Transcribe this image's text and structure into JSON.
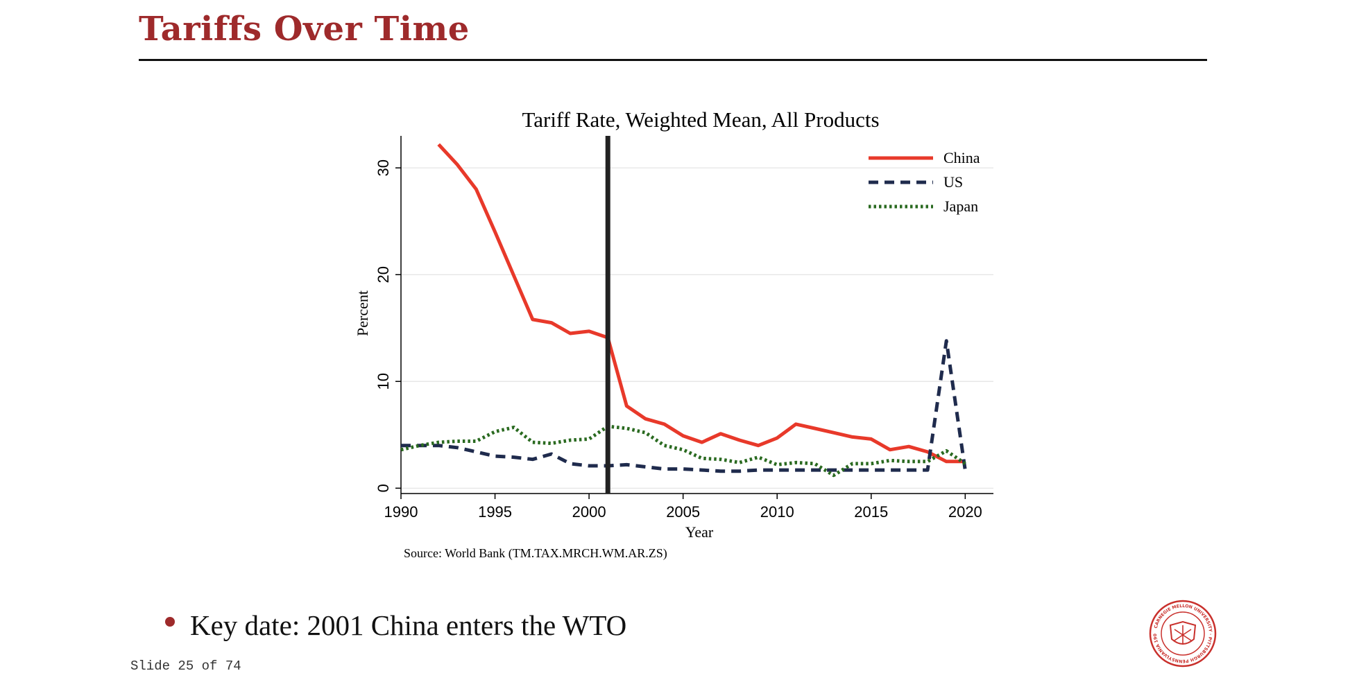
{
  "slide": {
    "title": "Tariffs Over Time",
    "bullet": "Key date: 2001 China enters the WTO",
    "slide_number": "Slide 25 of 74"
  },
  "logo": {
    "name": "Carnegie Mellon University seal",
    "text": "CARNEGIE MELLON UNIVERSITY · PITTSBURGH PENNSYLVANIA 1900"
  },
  "colors": {
    "accent": "#9e2a2b",
    "china": "#e8392a",
    "us": "#1f2b4d",
    "japan": "#2a6a20",
    "event_line": "#222222"
  },
  "chart_data": {
    "type": "line",
    "title": "Tariff Rate, Weighted Mean, All Products",
    "xlabel": "Year",
    "ylabel": "Percent",
    "source": "Source: World Bank (TM.TAX.MRCH.WM.AR.ZS)",
    "xlim": [
      1990,
      2021.5
    ],
    "ylim": [
      -0.5,
      33
    ],
    "xticks": [
      1990,
      1995,
      2000,
      2005,
      2010,
      2015,
      2020
    ],
    "yticks": [
      0,
      10,
      20,
      30
    ],
    "grid": true,
    "legend_position": "top-right",
    "vertical_line": {
      "x": 2001
    },
    "series": [
      {
        "name": "China",
        "style": "solid",
        "x": [
          1992,
          1993,
          1994,
          1995,
          1996,
          1997,
          1998,
          1999,
          2000,
          2001,
          2002,
          2003,
          2004,
          2005,
          2006,
          2007,
          2008,
          2009,
          2010,
          2011,
          2012,
          2013,
          2014,
          2015,
          2016,
          2017,
          2018,
          2019,
          2020
        ],
        "values": [
          32.2,
          30.3,
          28.0,
          24.0,
          19.9,
          15.8,
          15.5,
          14.5,
          14.7,
          14.1,
          7.7,
          6.5,
          6.0,
          4.9,
          4.3,
          5.1,
          4.5,
          4.0,
          4.7,
          6.0,
          5.6,
          5.2,
          4.8,
          4.6,
          3.6,
          3.9,
          3.4,
          2.5,
          2.5
        ]
      },
      {
        "name": "US",
        "style": "dashed",
        "x": [
          1990,
          1991,
          1992,
          1993,
          1994,
          1995,
          1996,
          1997,
          1998,
          1999,
          2000,
          2001,
          2002,
          2003,
          2004,
          2005,
          2006,
          2007,
          2008,
          2009,
          2010,
          2011,
          2012,
          2013,
          2014,
          2015,
          2016,
          2017,
          2018,
          2019,
          2020
        ],
        "values": [
          4.0,
          4.0,
          4.0,
          3.8,
          3.4,
          3.0,
          2.9,
          2.7,
          3.2,
          2.3,
          2.1,
          2.1,
          2.2,
          2.0,
          1.8,
          1.8,
          1.7,
          1.6,
          1.6,
          1.7,
          1.7,
          1.7,
          1.7,
          1.7,
          1.7,
          1.7,
          1.7,
          1.7,
          1.7,
          13.8,
          1.7
        ]
      },
      {
        "name": "Japan",
        "style": "dotted",
        "x": [
          1990,
          1991,
          1992,
          1993,
          1994,
          1995,
          1996,
          1997,
          1998,
          1999,
          2000,
          2001,
          2002,
          2003,
          2004,
          2005,
          2006,
          2007,
          2008,
          2009,
          2010,
          2011,
          2012,
          2013,
          2014,
          2015,
          2016,
          2017,
          2018,
          2019,
          2020
        ],
        "values": [
          3.6,
          4.0,
          4.3,
          4.4,
          4.4,
          5.3,
          5.7,
          4.3,
          4.2,
          4.5,
          4.6,
          5.8,
          5.6,
          5.2,
          4.0,
          3.6,
          2.8,
          2.7,
          2.4,
          2.9,
          2.2,
          2.4,
          2.3,
          1.2,
          2.3,
          2.3,
          2.6,
          2.5,
          2.5,
          3.5,
          2.3
        ]
      }
    ]
  }
}
